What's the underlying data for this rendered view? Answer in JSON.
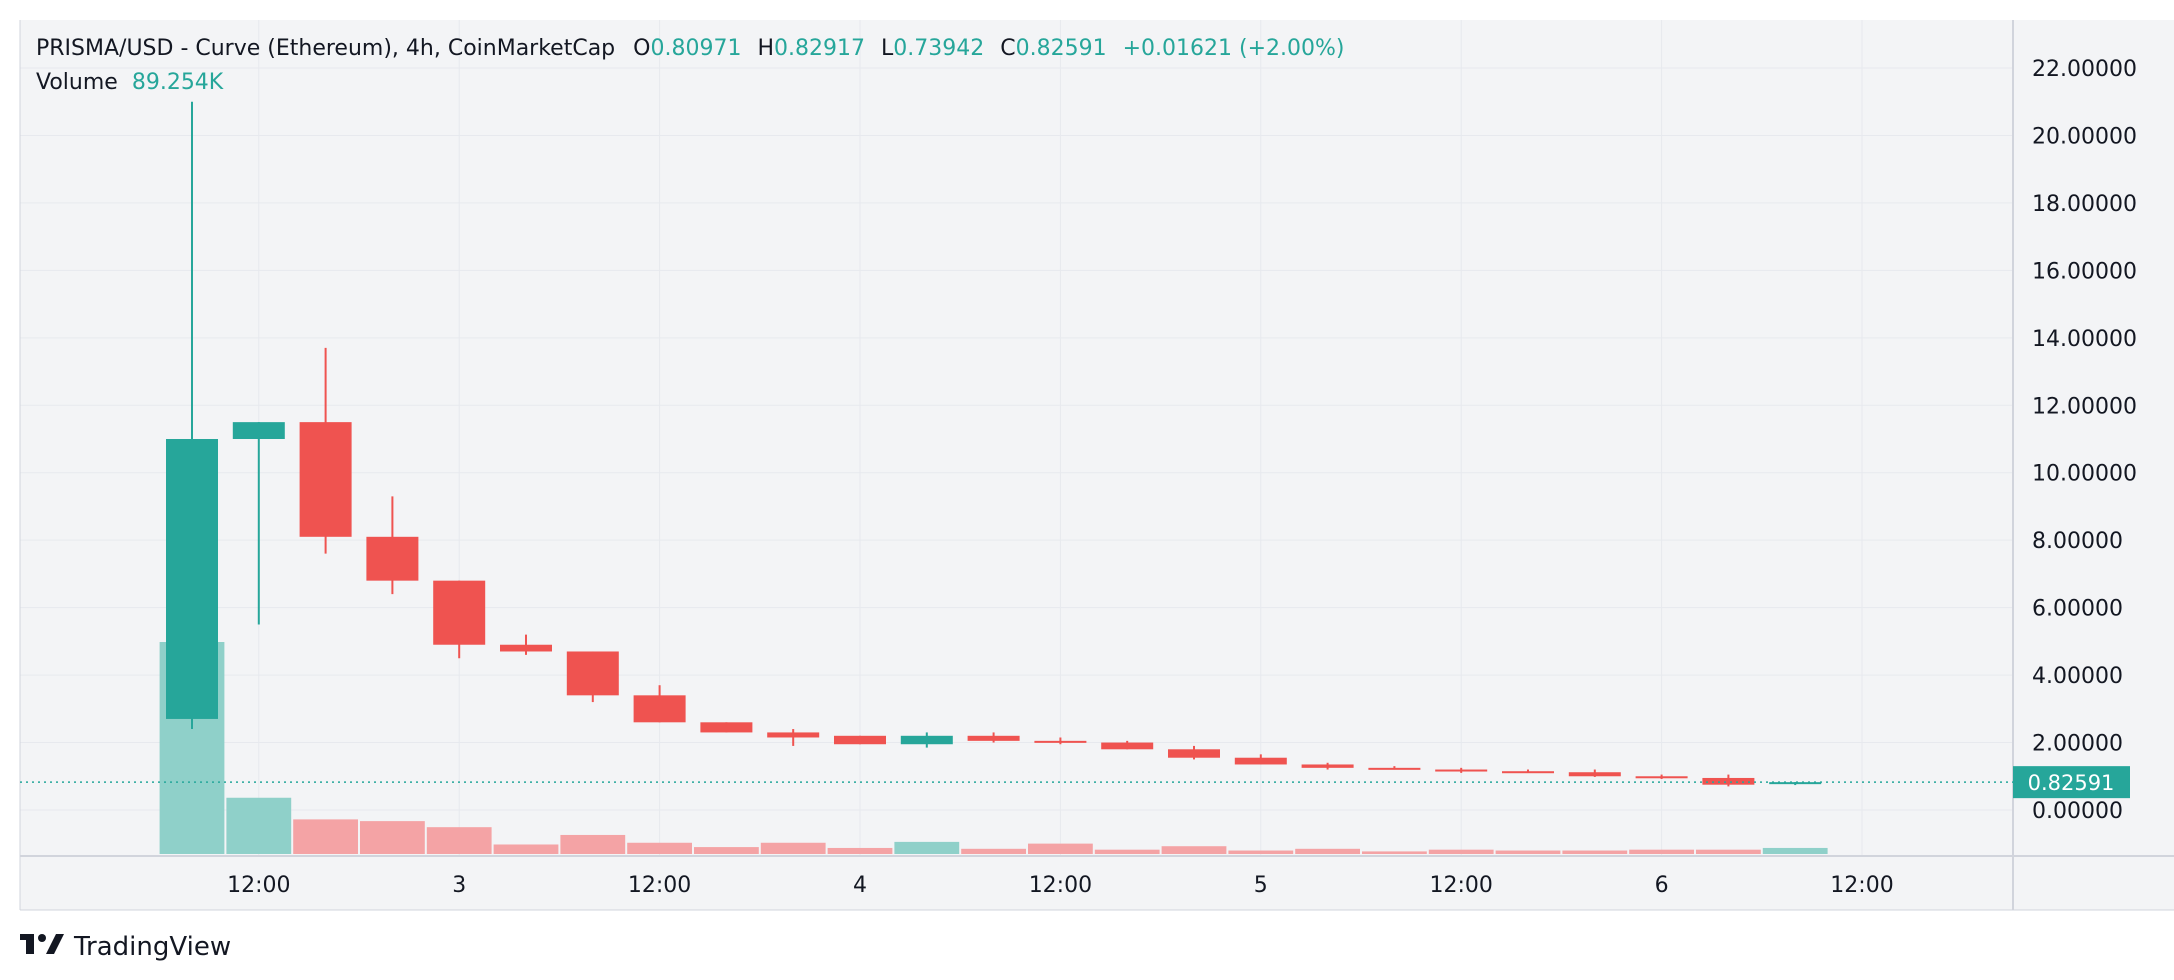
{
  "header": {
    "symbol": "PRISMA/USD - Curve (Ethereum), 4h, CoinMarketCap",
    "o_label": "O",
    "o_value": "0.80971",
    "h_label": "H",
    "h_value": "0.82917",
    "l_label": "L",
    "l_value": "0.73942",
    "c_label": "C",
    "c_value": "0.82591",
    "change": "+0.01621 (+2.00%)",
    "volume_label": "Volume",
    "volume_value": "89.254K"
  },
  "brand": {
    "name": "TradingView"
  },
  "colors": {
    "up": "#26a69a",
    "down": "#ef5350",
    "up_vol": "#8fd0c9",
    "down_vol": "#f4a3a5",
    "grid": "#e7e9ee",
    "background": "#f3f4f6"
  },
  "chart_data": {
    "type": "candlestick",
    "timeframe": "4h",
    "y_axis": {
      "min": 0,
      "max": 22,
      "ticks": [
        "22.00000",
        "20.00000",
        "18.00000",
        "16.00000",
        "14.00000",
        "12.00000",
        "10.00000",
        "8.00000",
        "6.00000",
        "4.00000",
        "2.00000",
        "0.00000"
      ],
      "tick_values": [
        22,
        20,
        18,
        16,
        14,
        12,
        10,
        8,
        6,
        4,
        2,
        0
      ]
    },
    "x_axis": {
      "ticks": [
        "12:00",
        "3",
        "12:00",
        "4",
        "12:00",
        "5",
        "12:00",
        "6",
        "12:00"
      ],
      "tick_bar_index": [
        1.0,
        4.0,
        7.0,
        10.0,
        13.0,
        16.0,
        19.0,
        22.0,
        25.0
      ]
    },
    "last_price": {
      "value": 0.82591,
      "label": "0.82591"
    },
    "candles": [
      {
        "o": 2.7,
        "h": 21.0,
        "l": 2.4,
        "c": 11.0,
        "v": 2.45
      },
      {
        "o": 11.0,
        "h": 11.5,
        "l": 5.5,
        "c": 11.5,
        "v": 0.65
      },
      {
        "o": 11.5,
        "h": 13.7,
        "l": 7.6,
        "c": 8.1,
        "v": 0.4
      },
      {
        "o": 8.1,
        "h": 9.3,
        "l": 6.4,
        "c": 6.8,
        "v": 0.38
      },
      {
        "o": 6.8,
        "h": 6.8,
        "l": 4.5,
        "c": 4.9,
        "v": 0.31
      },
      {
        "o": 4.9,
        "h": 5.2,
        "l": 4.6,
        "c": 4.7,
        "v": 0.11
      },
      {
        "o": 4.7,
        "h": 4.7,
        "l": 3.2,
        "c": 3.4,
        "v": 0.22
      },
      {
        "o": 3.4,
        "h": 3.7,
        "l": 2.6,
        "c": 2.6,
        "v": 0.13
      },
      {
        "o": 2.6,
        "h": 2.6,
        "l": 2.3,
        "c": 2.3,
        "v": 0.08
      },
      {
        "o": 2.3,
        "h": 2.4,
        "l": 1.9,
        "c": 2.15,
        "v": 0.13
      },
      {
        "o": 2.2,
        "h": 2.2,
        "l": 1.95,
        "c": 1.95,
        "v": 0.07
      },
      {
        "o": 1.95,
        "h": 2.3,
        "l": 1.85,
        "c": 2.2,
        "v": 0.14
      },
      {
        "o": 2.2,
        "h": 2.3,
        "l": 2.0,
        "c": 2.05,
        "v": 0.06
      },
      {
        "o": 2.05,
        "h": 2.15,
        "l": 1.95,
        "c": 2.0,
        "v": 0.12
      },
      {
        "o": 2.0,
        "h": 2.05,
        "l": 1.8,
        "c": 1.8,
        "v": 0.05
      },
      {
        "o": 1.8,
        "h": 1.9,
        "l": 1.5,
        "c": 1.55,
        "v": 0.09
      },
      {
        "o": 1.55,
        "h": 1.65,
        "l": 1.35,
        "c": 1.35,
        "v": 0.04
      },
      {
        "o": 1.35,
        "h": 1.4,
        "l": 1.2,
        "c": 1.25,
        "v": 0.06
      },
      {
        "o": 1.25,
        "h": 1.3,
        "l": 1.2,
        "c": 1.2,
        "v": 0.03
      },
      {
        "o": 1.2,
        "h": 1.25,
        "l": 1.1,
        "c": 1.15,
        "v": 0.05
      },
      {
        "o": 1.15,
        "h": 1.2,
        "l": 1.1,
        "c": 1.12,
        "v": 0.04
      },
      {
        "o": 1.12,
        "h": 1.2,
        "l": 0.98,
        "c": 1.0,
        "v": 0.04
      },
      {
        "o": 1.0,
        "h": 1.05,
        "l": 0.92,
        "c": 0.95,
        "v": 0.05
      },
      {
        "o": 0.95,
        "h": 1.05,
        "l": 0.7,
        "c": 0.75,
        "v": 0.05
      },
      {
        "o": 0.80971,
        "h": 0.82917,
        "l": 0.73942,
        "c": 0.82591,
        "v": 0.07
      }
    ],
    "volume_scale_max": 3.0
  }
}
